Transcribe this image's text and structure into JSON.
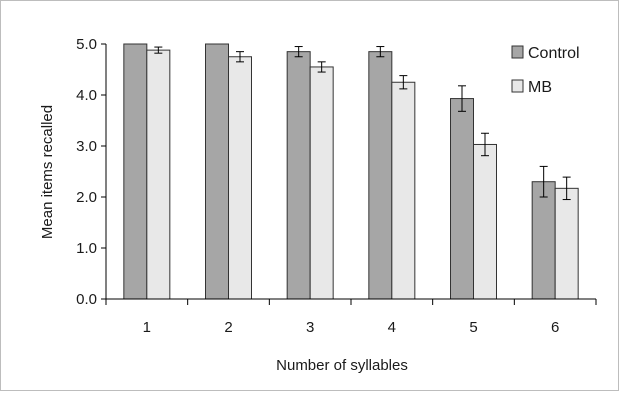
{
  "chart_data": {
    "type": "bar",
    "title": "",
    "xlabel": "Number of syllables",
    "ylabel": "Mean items recalled",
    "categories": [
      "1",
      "2",
      "3",
      "4",
      "5",
      "6"
    ],
    "ylim": [
      0,
      5
    ],
    "yticks": [
      "0.0",
      "1.0",
      "2.0",
      "3.0",
      "4.0",
      "5.0"
    ],
    "grid": false,
    "legend_position": "top-right",
    "series": [
      {
        "name": "Control",
        "color": "#a6a6a6",
        "values": [
          5.0,
          5.0,
          4.85,
          4.85,
          3.93,
          2.3
        ],
        "errors": [
          0.0,
          0.0,
          0.1,
          0.1,
          0.25,
          0.3
        ]
      },
      {
        "name": "MB",
        "color": "#e8e8e8",
        "values": [
          4.88,
          4.75,
          4.55,
          4.25,
          3.03,
          2.17
        ],
        "errors": [
          0.06,
          0.1,
          0.1,
          0.13,
          0.22,
          0.22
        ]
      }
    ]
  }
}
